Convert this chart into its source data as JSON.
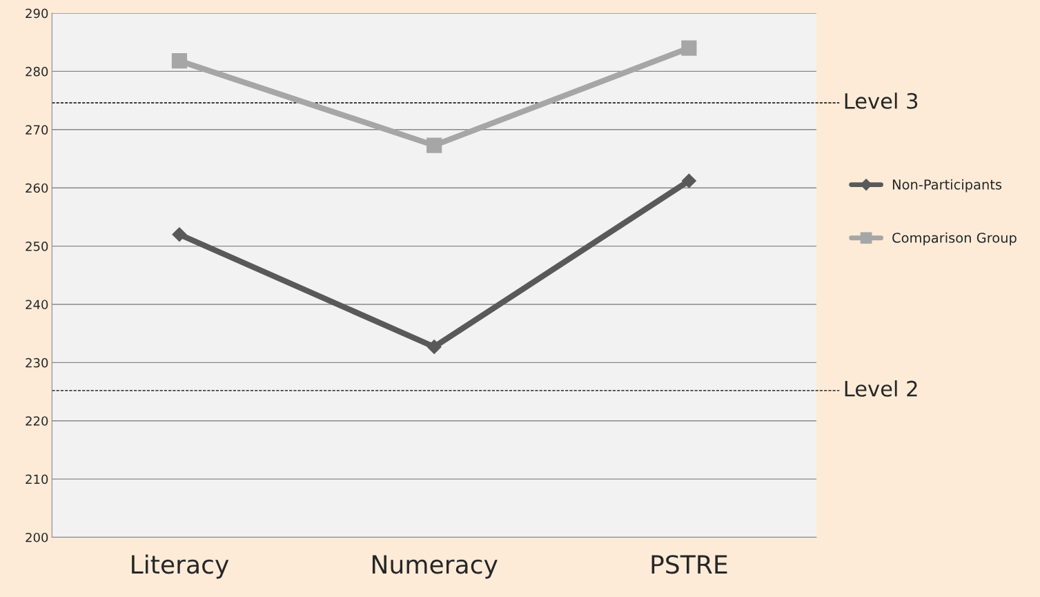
{
  "chart_data": {
    "type": "line",
    "categories": [
      "Literacy",
      "Numeracy",
      "PSTRE"
    ],
    "series": [
      {
        "name": "Non-Participants",
        "color": "#595959",
        "marker": "diamond",
        "values": [
          252.0,
          232.7,
          261.2
        ]
      },
      {
        "name": "Comparison Group",
        "color": "#a6a6a6",
        "marker": "square",
        "values": [
          281.8,
          267.3,
          284.0
        ]
      }
    ],
    "ylim": [
      200,
      290
    ],
    "yticks": [
      200,
      210,
      220,
      230,
      240,
      250,
      260,
      270,
      280,
      290
    ],
    "grid": "y",
    "legend": "right",
    "ref_lines": [
      {
        "axis": "y",
        "value": 274.6,
        "label": "Level 3",
        "color": "#000000",
        "line_style": "dashed"
      },
      {
        "axis": "y",
        "value": 225.2,
        "label": "Level 2",
        "color": "#000000",
        "line_style": "dashed"
      }
    ]
  }
}
